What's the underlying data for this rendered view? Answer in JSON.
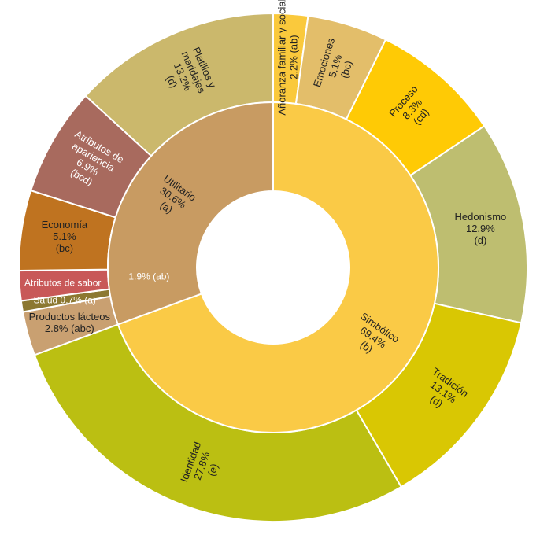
{
  "chart_data": {
    "type": "sunburst",
    "title": "",
    "inner": [
      {
        "name": "Simbólico",
        "value": 69.4,
        "letter": "(b)",
        "color": "#FACA46"
      },
      {
        "name": "Utilitario",
        "value": 30.6,
        "letter": "(a)",
        "color": "#C89B62"
      }
    ],
    "outer": [
      {
        "name": "Añoranza familiar y social",
        "value": 2.2,
        "letter": "(ab)",
        "parent": "Simbólico",
        "color": "#FAC93C"
      },
      {
        "name": "Emociones",
        "value": 5.1,
        "letter": "(bc)",
        "parent": "Simbólico",
        "color": "#E3BE6A"
      },
      {
        "name": "Proceso",
        "value": 8.3,
        "letter": "(cd)",
        "parent": "Simbólico",
        "color": "#FFCA05"
      },
      {
        "name": "Hedonismo",
        "value": 12.9,
        "letter": "(d)",
        "parent": "Simbólico",
        "color": "#BEBE70"
      },
      {
        "name": "Tradición",
        "value": 13.1,
        "letter": "(d)",
        "parent": "Simbólico",
        "color": "#D9C703"
      },
      {
        "name": "Identidad",
        "value": 27.8,
        "letter": "(e)",
        "parent": "Simbólico",
        "color": "#BBBF12"
      },
      {
        "name": "Productos lácteos",
        "value": 2.8,
        "letter": "(abc)",
        "parent": "Utilitario",
        "color": "#C9A071"
      },
      {
        "name": "Salud",
        "value": 0.7,
        "letter": "(a)",
        "parent": "Utilitario",
        "color": "#8C7831"
      },
      {
        "name": "Atributos de sabor",
        "value": 1.9,
        "letter": "(ab)",
        "parent": "Utilitario",
        "color": "#C85858"
      },
      {
        "name": "Economía",
        "value": 5.1,
        "letter": "(bc)",
        "parent": "Utilitario",
        "color": "#BF7320"
      },
      {
        "name": "Atributos de apariencia",
        "value": 6.9,
        "letter": "(bcd)",
        "parent": "Utilitario",
        "color": "#A86A5E"
      },
      {
        "name": "Platillos y maridajes",
        "value": 13.2,
        "letter": "(d)",
        "parent": "Utilitario",
        "color": "#CBB86C"
      }
    ]
  }
}
